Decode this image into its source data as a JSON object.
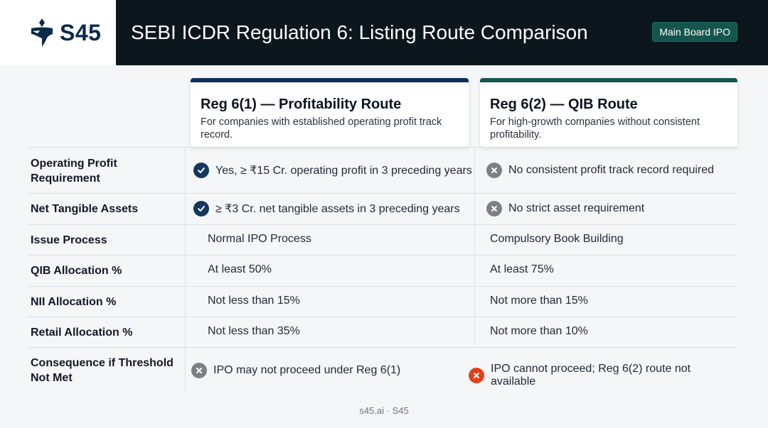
{
  "brand": {
    "name": "S45"
  },
  "header": {
    "title": "SEBI ICDR Regulation 6: Listing Route Comparison",
    "badge": "Main Board IPO"
  },
  "routes": [
    {
      "title": "Reg 6(1) — Profitability Route",
      "description": "For companies with established operating profit track record."
    },
    {
      "title": "Reg 6(2) — QIB Route",
      "description": "For high-growth companies without consistent profitability."
    }
  ],
  "rows": [
    {
      "label": "Operating Profit Requirement",
      "reg61": {
        "text": "Yes, ≥ ₹15 Cr. operating profit in 3 preceding years",
        "icon": "check-icon"
      },
      "reg62": {
        "text": "No consistent profit track record required",
        "icon": "x-icon"
      }
    },
    {
      "label": "Net Tangible Assets",
      "reg61": {
        "text": "≥ ₹3 Cr. net tangible assets in 3 preceding years",
        "icon": "check-icon"
      },
      "reg62": {
        "text": "No strict asset requirement",
        "icon": "x-icon"
      }
    },
    {
      "label": "Issue Process",
      "reg61": {
        "text": "Normal IPO Process"
      },
      "reg62": {
        "text": "Compulsory Book Building"
      }
    },
    {
      "label": "QIB Allocation %",
      "reg61": {
        "text": "At least 50%"
      },
      "reg62": {
        "text": "At least 75%"
      }
    },
    {
      "label": "NII Allocation %",
      "reg61": {
        "text": "Not less than 15%"
      },
      "reg62": {
        "text": "Not more than 15%"
      }
    },
    {
      "label": "Retail Allocation %",
      "reg61": {
        "text": "Not less than 35%"
      },
      "reg62": {
        "text": "Not more than 10%"
      }
    },
    {
      "label": "Consequence if Threshold Not Met",
      "reg61": {
        "text": "IPO may not proceed under Reg 6(1)",
        "icon": "x-icon"
      },
      "reg62": {
        "text": "IPO cannot proceed; Reg 6(2) route not available",
        "icon": "x-icon-alert"
      }
    }
  ],
  "footer": {
    "text": "s45.ai · S45"
  },
  "colors": {
    "header_bg": "#0c171d",
    "brand_navy": "#0c2a4a",
    "badge_green": "#14564b",
    "check": "#14365f",
    "cross": "#7c7f85",
    "alert": "#e63e1c"
  }
}
